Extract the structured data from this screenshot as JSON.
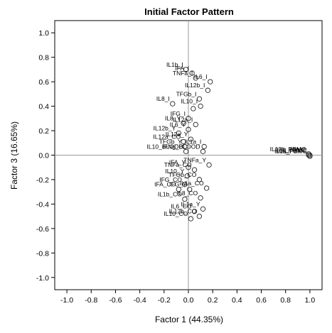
{
  "chart_data": {
    "type": "scatter",
    "title": "Initial Factor Pattern",
    "xlabel": "Factor 1 (44.35%)",
    "ylabel": "Factor 3 (16.65%)",
    "xlim": [
      -1.1,
      1.1
    ],
    "ylim": [
      -1.1,
      1.1
    ],
    "xticks": [
      "-1.0",
      "-0.8",
      "-0.6",
      "-0.4",
      "-0.2",
      "0.0",
      "0.2",
      "0.4",
      "0.6",
      "0.8",
      "1.0"
    ],
    "yticks": [
      "1.0",
      "0.8",
      "0.6",
      "0.4",
      "0.2",
      "0.0",
      "-0.2",
      "-0.4",
      "-0.6",
      "-0.8",
      "-1.0"
    ],
    "reference_lines": {
      "x": 0,
      "y": 0
    },
    "grid": false,
    "points": [
      {
        "label": "IL1b_I",
        "x": -0.02,
        "y": 0.7
      },
      {
        "label": "IFA_I",
        "x": 0.03,
        "y": 0.67
      },
      {
        "label": "TNFa_I",
        "x": 0.06,
        "y": 0.63
      },
      {
        "label": "IL6_I",
        "x": 0.18,
        "y": 0.6
      },
      {
        "label": "IL12b_I",
        "x": 0.16,
        "y": 0.53
      },
      {
        "label": "TFGb_I",
        "x": 0.09,
        "y": 0.46
      },
      {
        "label": "IL8_I",
        "x": -0.13,
        "y": 0.42
      },
      {
        "label": "IL10_I",
        "x": 0.1,
        "y": 0.4
      },
      {
        "label": "",
        "x": 0.04,
        "y": 0.38
      },
      {
        "label": "IFG_I",
        "x": 0.0,
        "y": 0.3
      },
      {
        "label": "IL8_Y",
        "x": -0.04,
        "y": 0.26
      },
      {
        "label": "IL12a_I",
        "x": 0.06,
        "y": 0.25
      },
      {
        "label": "IL6_Y",
        "x": 0.0,
        "y": 0.21
      },
      {
        "label": "IL12b_Y",
        "x": -0.08,
        "y": 0.18
      },
      {
        "label": "IL12a_Y",
        "x": 0.02,
        "y": 0.13
      },
      {
        "label": "IL12a_CO",
        "x": -0.04,
        "y": 0.11
      },
      {
        "label": "IL1a_I",
        "x": 0.13,
        "y": 0.07
      },
      {
        "label": "TFGb_Y",
        "x": -0.03,
        "y": 0.07
      },
      {
        "label": "IFNg_BLOOD",
        "x": 0.12,
        "y": 0.03
      },
      {
        "label": "IL10_BLOOD",
        "x": -0.02,
        "y": 0.03
      },
      {
        "label": "TNFa_Y",
        "x": 0.17,
        "y": -0.08
      },
      {
        "label": "IFA_Y",
        "x": 0.0,
        "y": -0.1
      },
      {
        "label": "TNFa_CO",
        "x": 0.05,
        "y": -0.12
      },
      {
        "label": "IL10_Y",
        "x": -0.01,
        "y": -0.17
      },
      {
        "label": "TFGb_CO",
        "x": 0.09,
        "y": -0.2
      },
      {
        "label": "IFG_CO",
        "x": -0.03,
        "y": -0.24
      },
      {
        "label": "IFA_CO",
        "x": -0.08,
        "y": -0.28
      },
      {
        "label": "IFG_Y",
        "x": 0.01,
        "y": -0.28
      },
      {
        "label": "IL1a_CO",
        "x": 0.15,
        "y": -0.27
      },
      {
        "label": "IL8_CO",
        "x": 0.1,
        "y": -0.35
      },
      {
        "label": "IL1b_CO",
        "x": -0.03,
        "y": -0.36
      },
      {
        "label": "IL1a_Y",
        "x": 0.12,
        "y": -0.44
      },
      {
        "label": "IL6_CO",
        "x": 0.05,
        "y": -0.46
      },
      {
        "label": "IL12b_CO",
        "x": 0.09,
        "y": -0.5
      },
      {
        "label": "IL10_CO",
        "x": 0.02,
        "y": -0.52
      },
      {
        "label": "IL12b_PBMC",
        "x": 0.99,
        "y": 0.01
      },
      {
        "label": "IL6_PBMC",
        "x": 0.99,
        "y": 0.0
      },
      {
        "label": "IL1a_PBMC",
        "x": 1.0,
        "y": -0.01
      },
      {
        "label": "IL10_PBMC",
        "x": 1.0,
        "y": 0.0
      }
    ]
  }
}
